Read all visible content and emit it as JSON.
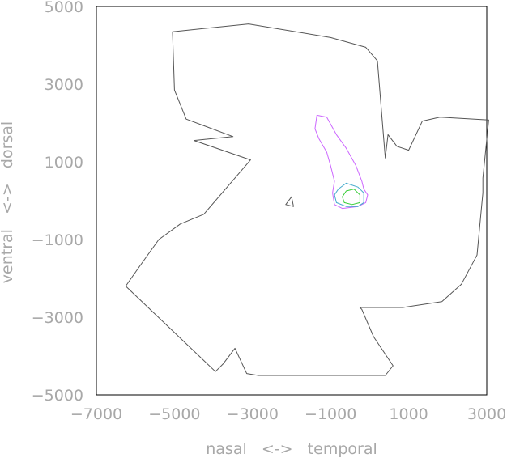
{
  "chart_data": {
    "type": "line",
    "title": "",
    "xlabel": "nasal   <->   temporal",
    "ylabel": "ventral   <->   dorsal",
    "xlim": [
      -7000,
      3000
    ],
    "ylim": [
      -5000,
      5000
    ],
    "xticks": [
      -7000,
      -5000,
      -3000,
      -1000,
      1000,
      3000
    ],
    "yticks": [
      -5000,
      -3000,
      -1000,
      1000,
      3000,
      5000
    ],
    "grid": false,
    "colors": {
      "frame": "#000000",
      "tick_text": "#a8a8a8",
      "outline": "#555555",
      "contour_outer": "#cc66ff",
      "contour_mid": "#44aacc",
      "contour_inner": "#33cc33"
    },
    "series": [
      {
        "role": "outline",
        "points": [
          [
            -5050,
            4350
          ],
          [
            -3100,
            4550
          ],
          [
            -1000,
            4200
          ],
          [
            -100,
            3950
          ],
          [
            200,
            3600
          ],
          [
            400,
            1100
          ],
          [
            470,
            1700
          ],
          [
            700,
            1400
          ],
          [
            1000,
            1300
          ],
          [
            1350,
            2050
          ],
          [
            1800,
            2150
          ],
          [
            3050,
            2080
          ],
          [
            2900,
            580
          ],
          [
            2900,
            200
          ],
          [
            2750,
            -1400
          ],
          [
            2350,
            -2150
          ],
          [
            1850,
            -2600
          ],
          [
            850,
            -2750
          ],
          [
            -250,
            -2750
          ],
          [
            -200,
            -2800
          ],
          [
            100,
            -3500
          ],
          [
            600,
            -4250
          ],
          [
            400,
            -4500
          ],
          [
            -2850,
            -4500
          ],
          [
            -3150,
            -4450
          ],
          [
            -3450,
            -3800
          ],
          [
            -3750,
            -4200
          ],
          [
            -3950,
            -4400
          ],
          [
            -6250,
            -2200
          ],
          [
            -5900,
            -1700
          ],
          [
            -5400,
            -1000
          ],
          [
            -4850,
            -600
          ],
          [
            -4250,
            -350
          ],
          [
            -3050,
            1050
          ],
          [
            -4500,
            1550
          ],
          [
            -3500,
            1650
          ],
          [
            -4700,
            2100
          ],
          [
            -5000,
            2850
          ]
        ]
      },
      {
        "role": "outline-fragment",
        "points": [
          [
            -2150,
            -100
          ],
          [
            -2000,
            100
          ],
          [
            -1950,
            -150
          ],
          [
            -2150,
            -100
          ]
        ]
      },
      {
        "role": "contour-outer",
        "points": [
          [
            -1100,
            1250
          ],
          [
            -1300,
            1600
          ],
          [
            -1400,
            1850
          ],
          [
            -1350,
            2200
          ],
          [
            -1100,
            2150
          ],
          [
            -850,
            1700
          ],
          [
            -600,
            1350
          ],
          [
            -350,
            900
          ],
          [
            -200,
            500
          ],
          [
            -150,
            300
          ],
          [
            -50,
            150
          ],
          [
            -100,
            -50
          ],
          [
            -300,
            -150
          ],
          [
            -700,
            -200
          ],
          [
            -900,
            -100
          ],
          [
            -950,
            200
          ],
          [
            -900,
            500
          ],
          [
            -1000,
            900
          ],
          [
            -1100,
            1250
          ]
        ]
      },
      {
        "role": "contour-mid",
        "points": [
          [
            -800,
            300
          ],
          [
            -600,
            450
          ],
          [
            -300,
            350
          ],
          [
            -150,
            200
          ],
          [
            -150,
            -50
          ],
          [
            -300,
            -150
          ],
          [
            -600,
            -150
          ],
          [
            -850,
            -50
          ],
          [
            -900,
            150
          ],
          [
            -800,
            300
          ]
        ]
      },
      {
        "role": "contour-inner",
        "points": [
          [
            -600,
            250
          ],
          [
            -400,
            300
          ],
          [
            -250,
            150
          ],
          [
            -250,
            -50
          ],
          [
            -450,
            -100
          ],
          [
            -650,
            -50
          ],
          [
            -700,
            100
          ],
          [
            -600,
            250
          ]
        ]
      }
    ]
  }
}
